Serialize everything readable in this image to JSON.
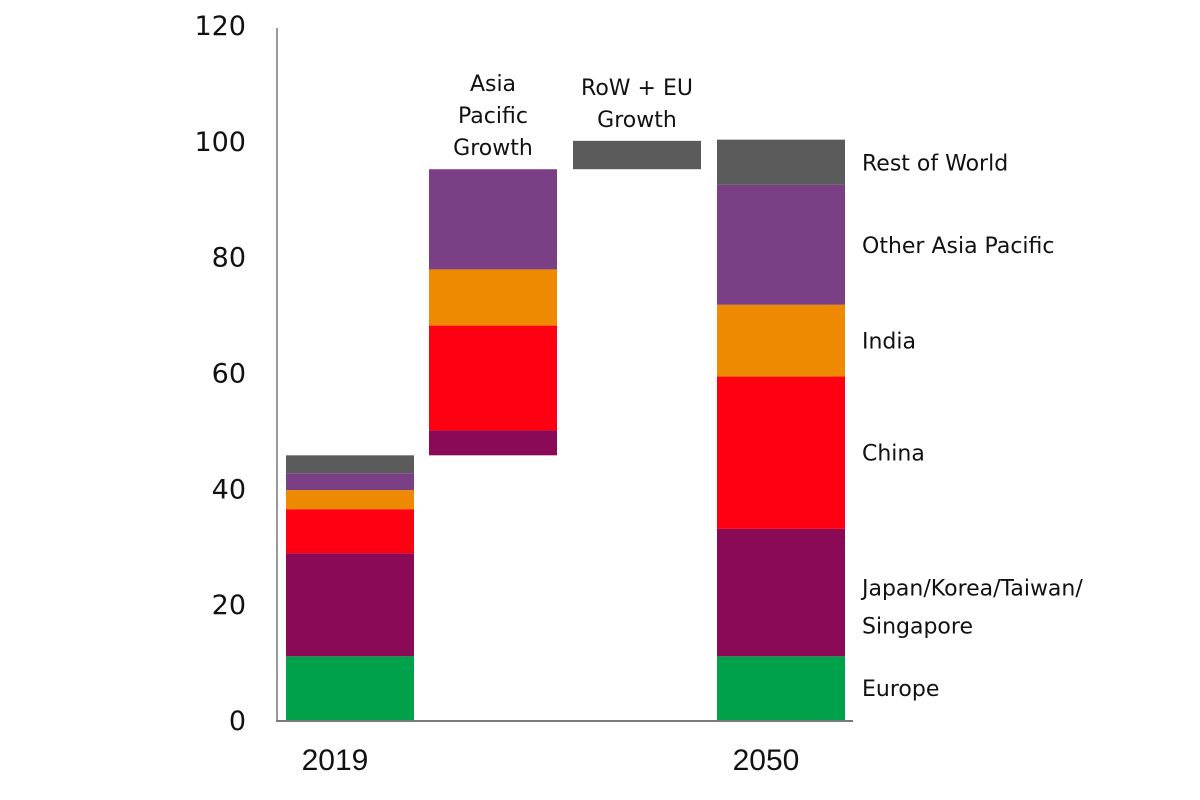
{
  "chart_data": {
    "type": "bar",
    "subtype": "stacked-waterfall",
    "title": "",
    "xlabel": "",
    "ylabel": "",
    "ylim": [
      0,
      120
    ],
    "yticks": [
      0,
      20,
      40,
      60,
      80,
      100,
      120
    ],
    "grid": false,
    "legend_placement": "right, aligned to 2050 bar segments",
    "categories": [
      "2019",
      "Asia Pacific Growth",
      "RoW + EU Growth",
      "2050"
    ],
    "category_labels": {
      "bottom": [
        "2019",
        "",
        "",
        "2050"
      ],
      "top": [
        "",
        "Asia\nPacific\nGrowth",
        "RoW + EU\nGrowth",
        ""
      ]
    },
    "series": [
      {
        "name": "Europe",
        "color": "#00a14b",
        "values": [
          11.0,
          0,
          0,
          11.0
        ]
      },
      {
        "name": "Japan/Korea/Taiwan/Singapore",
        "color": "#8a0a56",
        "values": [
          17.8,
          4.3,
          0,
          22.0
        ]
      },
      {
        "name": "China",
        "color": "#ff0012",
        "values": [
          7.6,
          18.1,
          0,
          26.3
        ]
      },
      {
        "name": "India",
        "color": "#ee8a02",
        "values": [
          3.3,
          9.7,
          0,
          12.4
        ]
      },
      {
        "name": "Other Asia Pacific",
        "color": "#7a3f85",
        "values": [
          2.9,
          17.3,
          0,
          20.7
        ]
      },
      {
        "name": "Rest of World",
        "color": "#5b5b5b",
        "values": [
          3.1,
          0,
          4.9,
          7.8
        ]
      }
    ],
    "bar_base": [
      0,
      45.7,
      95.1,
      0
    ],
    "legend": [
      {
        "label": "Rest of World",
        "series": "Rest of World"
      },
      {
        "label": "Other Asia Pacific",
        "series": "Other Asia Pacific"
      },
      {
        "label": "India",
        "series": "India"
      },
      {
        "label": "China",
        "series": "China"
      },
      {
        "label": "Japan/Korea/Taiwan/\nSingapore",
        "series": "Japan/Korea/Taiwan/Singapore"
      },
      {
        "label": "Europe",
        "series": "Europe"
      }
    ]
  }
}
